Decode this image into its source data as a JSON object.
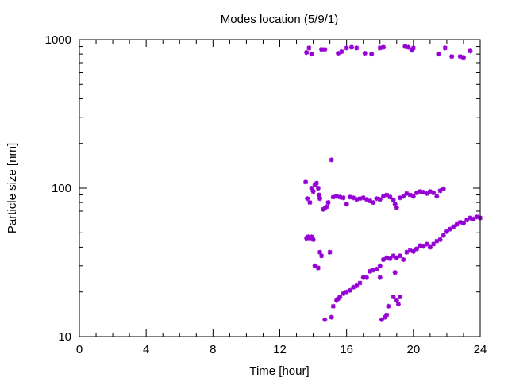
{
  "chart_data": {
    "type": "scatter",
    "title": "Modes location (5/9/1)",
    "xlabel": "Time [hour]",
    "ylabel": "Particle size [nm]",
    "xlim": [
      0,
      24
    ],
    "ylim": [
      10,
      1000
    ],
    "yscale": "log",
    "xticks": [
      0,
      4,
      8,
      12,
      16,
      20,
      24
    ],
    "xtick_labels": [
      "0",
      "4",
      "8",
      "12",
      "16",
      "20",
      "24"
    ],
    "yticks": [
      10,
      100,
      1000
    ],
    "ytick_labels": [
      "10",
      "100",
      "1000"
    ],
    "grid": false,
    "legend": "none",
    "marker_color": "#9400d3",
    "series": [
      {
        "points": [
          [
            13.6,
            820
          ],
          [
            13.75,
            880
          ],
          [
            13.9,
            800
          ],
          [
            14.5,
            860
          ],
          [
            14.7,
            860
          ],
          [
            15.5,
            810
          ],
          [
            15.7,
            830
          ],
          [
            16.0,
            880
          ],
          [
            16.3,
            890
          ],
          [
            16.6,
            880
          ],
          [
            17.1,
            810
          ],
          [
            17.5,
            800
          ],
          [
            18.0,
            880
          ],
          [
            18.2,
            890
          ],
          [
            19.5,
            900
          ],
          [
            19.7,
            890
          ],
          [
            19.9,
            850
          ],
          [
            20.0,
            880
          ],
          [
            21.5,
            800
          ],
          [
            21.9,
            880
          ],
          [
            22.3,
            770
          ],
          [
            22.8,
            770
          ],
          [
            23.0,
            760
          ],
          [
            23.4,
            840
          ],
          [
            13.55,
            110
          ],
          [
            13.65,
            85
          ],
          [
            13.8,
            80
          ],
          [
            13.9,
            100
          ],
          [
            14.0,
            95
          ],
          [
            14.1,
            105
          ],
          [
            14.2,
            108
          ],
          [
            14.3,
            100
          ],
          [
            14.35,
            90
          ],
          [
            14.4,
            85
          ],
          [
            14.6,
            72
          ],
          [
            14.7,
            73
          ],
          [
            14.8,
            75
          ],
          [
            14.9,
            80
          ],
          [
            15.1,
            155
          ],
          [
            15.2,
            87
          ],
          [
            15.4,
            88
          ],
          [
            15.6,
            87
          ],
          [
            15.8,
            86
          ],
          [
            16.0,
            78
          ],
          [
            16.2,
            87
          ],
          [
            16.4,
            86
          ],
          [
            16.6,
            84
          ],
          [
            16.8,
            85
          ],
          [
            17.0,
            86
          ],
          [
            17.2,
            84
          ],
          [
            17.4,
            82
          ],
          [
            17.6,
            80
          ],
          [
            17.8,
            85
          ],
          [
            18.0,
            84
          ],
          [
            18.2,
            88
          ],
          [
            18.4,
            90
          ],
          [
            18.6,
            87
          ],
          [
            18.8,
            83
          ],
          [
            18.9,
            78
          ],
          [
            19.0,
            74
          ],
          [
            19.2,
            86
          ],
          [
            19.4,
            88
          ],
          [
            19.6,
            92
          ],
          [
            19.8,
            90
          ],
          [
            20.0,
            88
          ],
          [
            20.2,
            93
          ],
          [
            20.4,
            95
          ],
          [
            20.6,
            94
          ],
          [
            20.8,
            92
          ],
          [
            21.0,
            95
          ],
          [
            21.2,
            93
          ],
          [
            21.4,
            88
          ],
          [
            21.6,
            96
          ],
          [
            21.8,
            99
          ],
          [
            13.6,
            46
          ],
          [
            13.7,
            47
          ],
          [
            13.8,
            46
          ],
          [
            13.9,
            47
          ],
          [
            14.0,
            45
          ],
          [
            14.1,
            30
          ],
          [
            14.3,
            29
          ],
          [
            14.4,
            37
          ],
          [
            14.5,
            35
          ],
          [
            15.0,
            37
          ],
          [
            14.7,
            13
          ],
          [
            15.1,
            13.5
          ],
          [
            15.2,
            16
          ],
          [
            15.4,
            17.5
          ],
          [
            15.5,
            18
          ],
          [
            15.6,
            18.5
          ],
          [
            15.8,
            19.5
          ],
          [
            16.0,
            20
          ],
          [
            16.2,
            20.5
          ],
          [
            16.4,
            21.5
          ],
          [
            16.6,
            22
          ],
          [
            16.8,
            23
          ],
          [
            17.0,
            25
          ],
          [
            17.2,
            25
          ],
          [
            17.4,
            27.5
          ],
          [
            17.6,
            28
          ],
          [
            17.8,
            28.5
          ],
          [
            18.0,
            30
          ],
          [
            18.2,
            33
          ],
          [
            18.4,
            34
          ],
          [
            18.6,
            33.5
          ],
          [
            18.8,
            35
          ],
          [
            19.0,
            34
          ],
          [
            19.2,
            35
          ],
          [
            19.4,
            33
          ],
          [
            19.6,
            37
          ],
          [
            19.8,
            38
          ],
          [
            20.0,
            37.5
          ],
          [
            20.2,
            39
          ],
          [
            20.4,
            41
          ],
          [
            20.6,
            40.5
          ],
          [
            20.8,
            42
          ],
          [
            21.0,
            40
          ],
          [
            21.2,
            42
          ],
          [
            21.4,
            44
          ],
          [
            21.6,
            45
          ],
          [
            21.8,
            48
          ],
          [
            22.0,
            51
          ],
          [
            22.2,
            53
          ],
          [
            22.4,
            55
          ],
          [
            22.6,
            57
          ],
          [
            22.8,
            59
          ],
          [
            23.0,
            58
          ],
          [
            23.2,
            61
          ],
          [
            23.4,
            63
          ],
          [
            23.6,
            62
          ],
          [
            23.8,
            64
          ],
          [
            24.0,
            63
          ],
          [
            18.1,
            13
          ],
          [
            18.3,
            13.5
          ],
          [
            18.4,
            14
          ],
          [
            18.5,
            16
          ],
          [
            18.8,
            18.5
          ],
          [
            19.0,
            17.5
          ],
          [
            19.1,
            16.5
          ],
          [
            19.2,
            18.5
          ],
          [
            18.9,
            27
          ],
          [
            18.0,
            25
          ]
        ]
      }
    ]
  }
}
